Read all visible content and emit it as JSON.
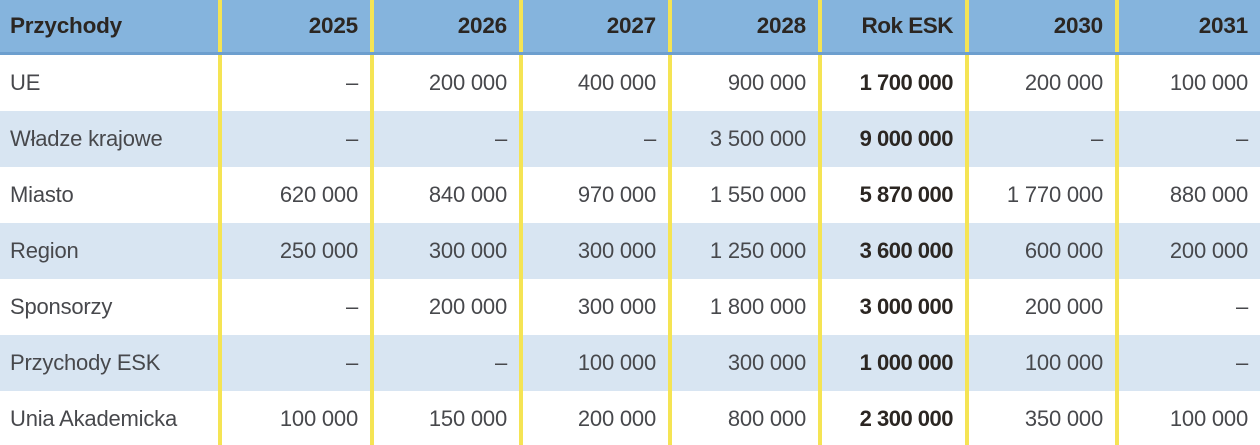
{
  "table": {
    "header": {
      "cells": [
        "Przychody",
        "2025",
        "2026",
        "2027",
        "2028",
        "Rok ESK",
        "2030",
        "2031"
      ]
    },
    "rows": [
      {
        "label": "UE",
        "values": [
          "–",
          "200 000",
          "400 000",
          "900 000",
          "1 700 000",
          "200 000",
          "100 000"
        ]
      },
      {
        "label": "Władze krajowe",
        "values": [
          "–",
          "–",
          "–",
          "3 500 000",
          "9 000 000",
          "–",
          "–"
        ]
      },
      {
        "label": "Miasto",
        "values": [
          "620 000",
          "840 000",
          "970 000",
          "1 550 000",
          "5 870 000",
          "1 770 000",
          "880 000"
        ]
      },
      {
        "label": "Region",
        "values": [
          "250 000",
          "300 000",
          "300 000",
          "1 250 000",
          "3 600 000",
          "600 000",
          "200 000"
        ]
      },
      {
        "label": "Sponsorzy",
        "values": [
          "–",
          "200 000",
          "300 000",
          "1 800 000",
          "3 000 000",
          "200 000",
          "–"
        ]
      },
      {
        "label": "Przychody ESK",
        "values": [
          "–",
          "–",
          "100 000",
          "300 000",
          "1 000 000",
          "100 000",
          "–"
        ]
      },
      {
        "label": "Unia Akademicka",
        "values": [
          "100 000",
          "150 000",
          "200 000",
          "800 000",
          "2 300 000",
          "350 000",
          "100 000"
        ]
      }
    ],
    "emphasized_column": "Rok ESK",
    "colors": {
      "header_bg": "#85b4dd",
      "header_underline": "#6d9fce",
      "zebra_row_bg": "#d8e5f2",
      "column_divider_yellow": "#f5e454",
      "text_strong": "#2b2622",
      "text_regular": "#47484c"
    }
  }
}
